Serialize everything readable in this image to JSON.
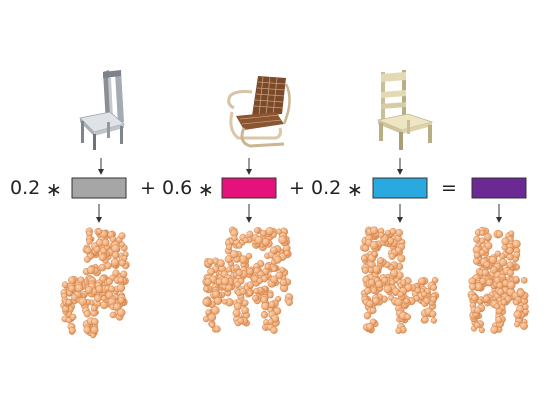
{
  "equation": {
    "terms": [
      {
        "coefficient": "0.2",
        "operator_before": "",
        "code_color": "#a6a6a6",
        "chart_src": "gray-metal-chair",
        "pc_style": "tall-chair"
      },
      {
        "coefficient": "0.6",
        "operator_before": "+",
        "code_color": "#e6127b",
        "chart_src": "cantilever-armchair",
        "pc_style": "armchair"
      },
      {
        "coefficient": "0.2",
        "operator_before": "+",
        "code_color": "#29a9df",
        "chart_src": "wooden-chair",
        "pc_style": "wooden-chair"
      }
    ],
    "multiply_symbol": "∗",
    "equals_symbol": "=",
    "result": {
      "code_color": "#6b2a93",
      "pc_style": "blended-chair"
    }
  },
  "colors": {
    "point_fill": "#f2b07d",
    "point_stroke": "#c97a44",
    "arrow": "#333333",
    "box_stroke": "#333333"
  }
}
